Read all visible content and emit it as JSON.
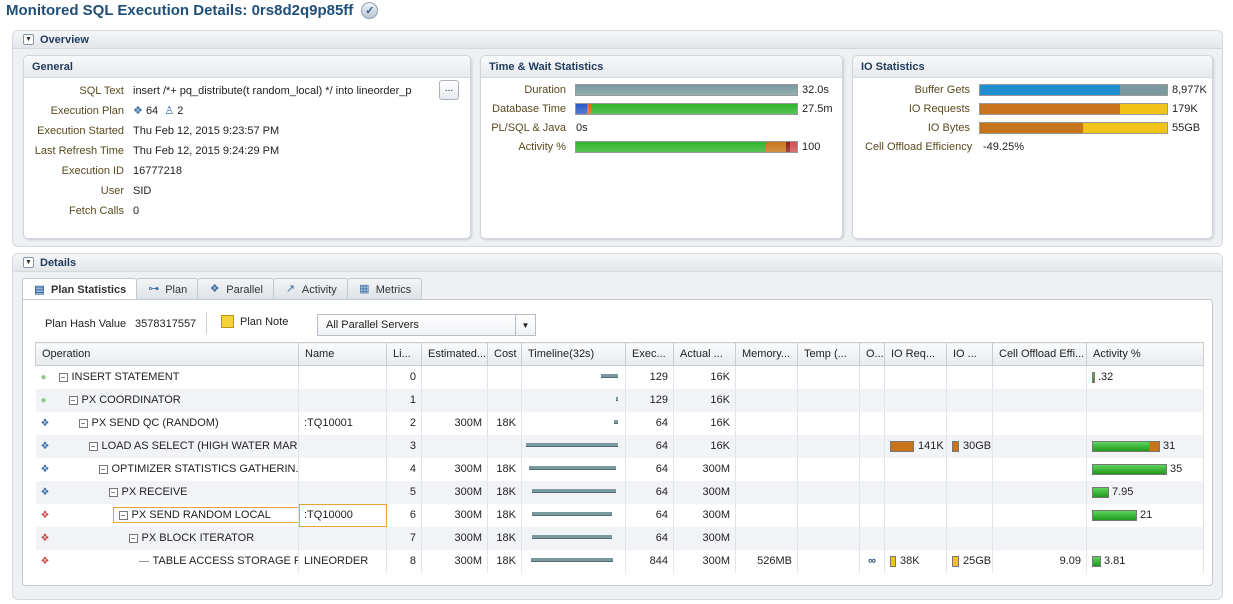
{
  "page": {
    "title": "Monitored SQL Execution Details: 0rs8d2q9p85ff",
    "check_icon": "check-icon"
  },
  "overview": {
    "label": "Overview",
    "general": {
      "title": "General",
      "fields": [
        {
          "label": "SQL Text",
          "value": "insert /*+ pq_distribute(t random_local) */ into lineorder_p"
        },
        {
          "label": "Execution Plan",
          "value": ""
        },
        {
          "label": "Execution Started",
          "value": "Thu Feb 12, 2015 9:23:57 PM"
        },
        {
          "label": "Last Refresh Time",
          "value": "Thu Feb 12, 2015 9:24:29 PM"
        },
        {
          "label": "Execution ID",
          "value": "16777218"
        },
        {
          "label": "User",
          "value": "SID"
        },
        {
          "label": "Fetch Calls",
          "value": "0"
        }
      ],
      "plan_servers": "64",
      "plan_instances": "2",
      "more_button": "..."
    },
    "time_wait": {
      "title": "Time & Wait Statistics",
      "rows": [
        {
          "label": "Duration",
          "value": "32.0s",
          "fill": 1.0
        },
        {
          "label": "Database Time",
          "value": "27.5m",
          "fill": 1.0
        },
        {
          "label": "PL/SQL & Java",
          "value": "0s",
          "fill": 0
        },
        {
          "label": "Activity %",
          "value": "100",
          "fill": 1.0
        }
      ]
    },
    "io": {
      "title": "IO Statistics",
      "rows": [
        {
          "label": "Buffer Gets",
          "value": "8,977K",
          "fill": 1.0
        },
        {
          "label": "IO Requests",
          "value": "179K",
          "fill": 1.0
        },
        {
          "label": "IO Bytes",
          "value": "55GB",
          "fill": 1.0
        },
        {
          "label": "Cell Offload Efficiency",
          "value": "-49.25%"
        }
      ]
    }
  },
  "details": {
    "label": "Details",
    "tabs": [
      {
        "label": "Plan Statistics",
        "icon": "table-icon"
      },
      {
        "label": "Plan",
        "icon": "tree-icon"
      },
      {
        "label": "Parallel",
        "icon": "servers-icon"
      },
      {
        "label": "Activity",
        "icon": "chart-icon"
      },
      {
        "label": "Metrics",
        "icon": "metrics-icon"
      }
    ],
    "plan_hash_label": "Plan Hash Value",
    "plan_hash_value": "3578317557",
    "plan_note": "Plan Note",
    "server_filter": "All Parallel Servers",
    "columns": [
      "Operation",
      "Name",
      "Li...",
      "Estimated...",
      "Cost",
      "Timeline(32s)",
      "Exec...",
      "Actual ...",
      "Memory...",
      "Temp (...",
      "O...",
      "IO Req...",
      "IO ...",
      "Cell Offload Effi...",
      "Activity %"
    ],
    "rows": [
      {
        "op": "INSERT STATEMENT",
        "indent": 0,
        "name": "",
        "line": "0",
        "est": "",
        "cost": "",
        "tl_start": 0.82,
        "tl_len": 0.18,
        "exec": "129",
        "actual": "16K",
        "mem": "",
        "temp": "",
        "o": "",
        "ioreq": "",
        "iob": "",
        "cell": "",
        "act": ".32",
        "act_frac": 0.01
      },
      {
        "op": "PX COORDINATOR",
        "indent": 1,
        "name": "",
        "line": "1",
        "est": "",
        "cost": "",
        "tl_start": 0.98,
        "tl_len": 0.02,
        "exec": "129",
        "actual": "16K",
        "mem": "",
        "temp": "",
        "o": "",
        "ioreq": "",
        "iob": "",
        "cell": "",
        "act": "",
        "act_frac": 0
      },
      {
        "op": "PX SEND QC (RANDOM)",
        "indent": 2,
        "name": ":TQ10001",
        "line": "2",
        "est": "300M",
        "cost": "18K",
        "tl_start": 0.96,
        "tl_len": 0.04,
        "exec": "64",
        "actual": "16K",
        "mem": "",
        "temp": "",
        "o": "",
        "ioreq": "",
        "iob": "",
        "cell": "",
        "act": "",
        "act_frac": 0
      },
      {
        "op": "LOAD AS SELECT (HIGH WATER MAR...",
        "indent": 3,
        "name": "",
        "line": "3",
        "est": "",
        "cost": "",
        "tl_start": 0.0,
        "tl_len": 1.0,
        "exec": "64",
        "actual": "16K",
        "mem": "",
        "temp": "",
        "o": "",
        "ioreq": "141K",
        "iob": "30GB",
        "cell": "",
        "act": "31",
        "act_frac": 0.45
      },
      {
        "op": "OPTIMIZER STATISTICS GATHERIN...",
        "indent": 4,
        "name": "",
        "line": "4",
        "est": "300M",
        "cost": "18K",
        "tl_start": 0.03,
        "tl_len": 0.95,
        "exec": "64",
        "actual": "300M",
        "mem": "",
        "temp": "",
        "o": "",
        "ioreq": "",
        "iob": "",
        "cell": "",
        "act": "35",
        "act_frac": 0.5
      },
      {
        "op": "PX RECEIVE",
        "indent": 5,
        "name": "",
        "line": "5",
        "est": "300M",
        "cost": "18K",
        "tl_start": 0.06,
        "tl_len": 0.92,
        "exec": "64",
        "actual": "300M",
        "mem": "",
        "temp": "",
        "o": "",
        "ioreq": "",
        "iob": "",
        "cell": "",
        "act": "7.95",
        "act_frac": 0.11
      },
      {
        "op": "PX SEND RANDOM LOCAL",
        "indent": 6,
        "name": ":TQ10000",
        "line": "6",
        "est": "300M",
        "cost": "18K",
        "tl_start": 0.06,
        "tl_len": 0.88,
        "exec": "64",
        "actual": "300M",
        "mem": "",
        "temp": "",
        "o": "",
        "ioreq": "",
        "iob": "",
        "cell": "",
        "act": "21",
        "act_frac": 0.3
      },
      {
        "op": "PX BLOCK ITERATOR",
        "indent": 7,
        "name": "",
        "line": "7",
        "est": "300M",
        "cost": "18K",
        "tl_start": 0.06,
        "tl_len": 0.88,
        "exec": "64",
        "actual": "300M",
        "mem": "",
        "temp": "",
        "o": "",
        "ioreq": "",
        "iob": "",
        "cell": "",
        "act": "",
        "act_frac": 0
      },
      {
        "op": "TABLE ACCESS STORAGE F...",
        "indent": 8,
        "name": "LINEORDER",
        "line": "8",
        "est": "300M",
        "cost": "18K",
        "tl_start": 0.05,
        "tl_len": 0.9,
        "exec": "844",
        "actual": "300M",
        "mem": "526MB",
        "temp": "",
        "o": "binoculars-icon",
        "ioreq": "38K",
        "iob": "25GB",
        "cell": "9.09",
        "act": "3.81",
        "act_frac": 0.06
      }
    ]
  },
  "colors": {
    "teal": "#7a9aa0",
    "green": "#2fb52b",
    "blue": "#1f8fd0",
    "orange": "#c8741a",
    "yellow": "#f2c318"
  }
}
